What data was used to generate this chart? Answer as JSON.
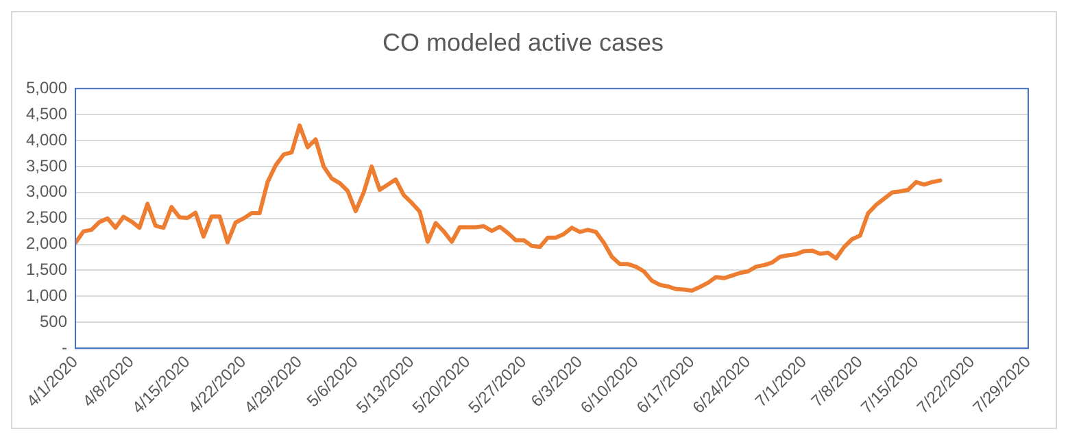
{
  "chart_data": {
    "type": "line",
    "title": "CO modeled active cases",
    "x": [
      "2020-04-01",
      "2020-04-02",
      "2020-04-03",
      "2020-04-04",
      "2020-04-05",
      "2020-04-06",
      "2020-04-07",
      "2020-04-08",
      "2020-04-09",
      "2020-04-10",
      "2020-04-11",
      "2020-04-12",
      "2020-04-13",
      "2020-04-14",
      "2020-04-15",
      "2020-04-16",
      "2020-04-17",
      "2020-04-18",
      "2020-04-19",
      "2020-04-20",
      "2020-04-21",
      "2020-04-22",
      "2020-04-23",
      "2020-04-24",
      "2020-04-25",
      "2020-04-26",
      "2020-04-27",
      "2020-04-28",
      "2020-04-29",
      "2020-04-30",
      "2020-05-01",
      "2020-05-02",
      "2020-05-03",
      "2020-05-04",
      "2020-05-05",
      "2020-05-06",
      "2020-05-07",
      "2020-05-08",
      "2020-05-09",
      "2020-05-10",
      "2020-05-11",
      "2020-05-12",
      "2020-05-13",
      "2020-05-14",
      "2020-05-15",
      "2020-05-16",
      "2020-05-17",
      "2020-05-18",
      "2020-05-19",
      "2020-05-20",
      "2020-05-21",
      "2020-05-22",
      "2020-05-23",
      "2020-05-24",
      "2020-05-25",
      "2020-05-26",
      "2020-05-27",
      "2020-05-28",
      "2020-05-29",
      "2020-05-30",
      "2020-05-31",
      "2020-06-01",
      "2020-06-02",
      "2020-06-03",
      "2020-06-04",
      "2020-06-05",
      "2020-06-06",
      "2020-06-07",
      "2020-06-08",
      "2020-06-09",
      "2020-06-10",
      "2020-06-11",
      "2020-06-12",
      "2020-06-13",
      "2020-06-14",
      "2020-06-15",
      "2020-06-16",
      "2020-06-17",
      "2020-06-18",
      "2020-06-19",
      "2020-06-20",
      "2020-06-21",
      "2020-06-22",
      "2020-06-23",
      "2020-06-24",
      "2020-06-25",
      "2020-06-26",
      "2020-06-27",
      "2020-06-28",
      "2020-06-29",
      "2020-06-30",
      "2020-07-01",
      "2020-07-02",
      "2020-07-03",
      "2020-07-04",
      "2020-07-05",
      "2020-07-06",
      "2020-07-07",
      "2020-07-08",
      "2020-07-09",
      "2020-07-10",
      "2020-07-11",
      "2020-07-12",
      "2020-07-13",
      "2020-07-14",
      "2020-07-15",
      "2020-07-16",
      "2020-07-17",
      "2020-07-18"
    ],
    "series": [
      {
        "color": "#ed7d31",
        "values": [
          2030,
          2250,
          2280,
          2430,
          2500,
          2320,
          2530,
          2440,
          2320,
          2780,
          2360,
          2320,
          2720,
          2520,
          2510,
          2610,
          2150,
          2540,
          2540,
          2040,
          2420,
          2500,
          2600,
          2600,
          3200,
          3520,
          3730,
          3770,
          4290,
          3870,
          4020,
          3500,
          3270,
          3180,
          3030,
          2640,
          3000,
          3500,
          3050,
          3150,
          3250,
          2950,
          2800,
          2630,
          2050,
          2410,
          2250,
          2050,
          2330,
          2330,
          2330,
          2350,
          2260,
          2340,
          2220,
          2080,
          2080,
          1970,
          1950,
          2130,
          2130,
          2200,
          2320,
          2240,
          2280,
          2240,
          2030,
          1760,
          1620,
          1620,
          1570,
          1480,
          1300,
          1220,
          1190,
          1140,
          1130,
          1110,
          1180,
          1260,
          1370,
          1350,
          1400,
          1450,
          1480,
          1570,
          1600,
          1650,
          1760,
          1790,
          1810,
          1870,
          1880,
          1820,
          1840,
          1730,
          1950,
          2100,
          2170,
          2600,
          2760,
          2880,
          3000,
          3020,
          3050,
          3200,
          3150,
          3200,
          3230
        ]
      }
    ],
    "xlim": [
      "2020-04-01",
      "2020-07-29"
    ],
    "xticks": [
      {
        "value": "2020-04-01",
        "label": "4/1/2020"
      },
      {
        "value": "2020-04-08",
        "label": "4/8/2020"
      },
      {
        "value": "2020-04-15",
        "label": "4/15/2020"
      },
      {
        "value": "2020-04-22",
        "label": "4/22/2020"
      },
      {
        "value": "2020-04-29",
        "label": "4/29/2020"
      },
      {
        "value": "2020-05-06",
        "label": "5/6/2020"
      },
      {
        "value": "2020-05-13",
        "label": "5/13/2020"
      },
      {
        "value": "2020-05-20",
        "label": "5/20/2020"
      },
      {
        "value": "2020-05-27",
        "label": "5/27/2020"
      },
      {
        "value": "2020-06-03",
        "label": "6/3/2020"
      },
      {
        "value": "2020-06-10",
        "label": "6/10/2020"
      },
      {
        "value": "2020-06-17",
        "label": "6/17/2020"
      },
      {
        "value": "2020-06-24",
        "label": "6/24/2020"
      },
      {
        "value": "2020-07-01",
        "label": "7/1/2020"
      },
      {
        "value": "2020-07-08",
        "label": "7/8/2020"
      },
      {
        "value": "2020-07-15",
        "label": "7/15/2020"
      },
      {
        "value": "2020-07-22",
        "label": "7/22/2020"
      },
      {
        "value": "2020-07-29",
        "label": "7/29/2020"
      }
    ],
    "ylim": [
      0,
      5000
    ],
    "yticks": [
      {
        "value": 0,
        "label": "-"
      },
      500,
      {
        "value": 1000,
        "label": "1,000"
      },
      {
        "value": 1500,
        "label": "1,500"
      },
      {
        "value": 2000,
        "label": "2,000"
      },
      {
        "value": 2500,
        "label": "2,500"
      },
      {
        "value": 3000,
        "label": "3,000"
      },
      {
        "value": 3500,
        "label": "3,500"
      },
      {
        "value": 4000,
        "label": "4,000"
      },
      {
        "value": 4500,
        "label": "4,500"
      },
      {
        "value": 5000,
        "label": "5,000"
      }
    ],
    "grid": "y",
    "legend": false,
    "marker": "none",
    "line_style": "solid"
  }
}
